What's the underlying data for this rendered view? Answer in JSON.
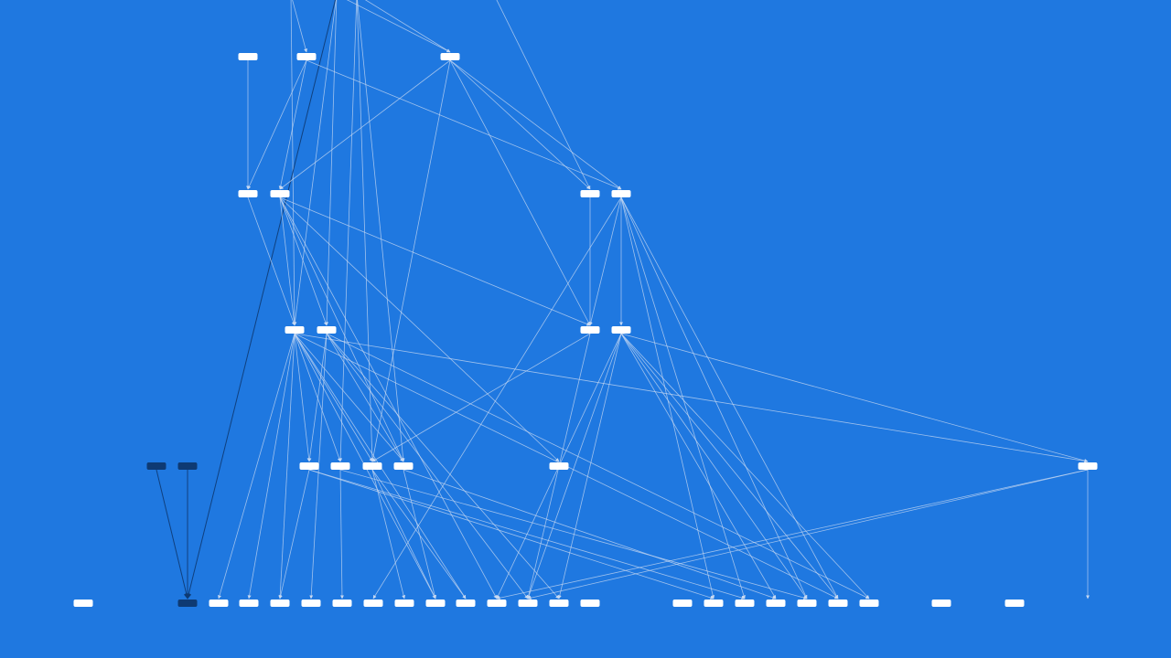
{
  "graph": {
    "title": "",
    "colors": {
      "background": "#1f78e0",
      "node": "#ffffff",
      "node_highlight": "#0e3a73",
      "edge": "#c9daf2",
      "edge_highlight": "#0e3a73"
    },
    "nodes": [
      {
        "id": "a1",
        "layer": 1,
        "slot": 0,
        "highlighted": false
      },
      {
        "id": "a2",
        "layer": 1,
        "slot": 1,
        "highlighted": false
      },
      {
        "id": "a3",
        "layer": 1,
        "slot": 2,
        "highlighted": false
      },
      {
        "id": "b1",
        "layer": 2,
        "slot": 0,
        "highlighted": false
      },
      {
        "id": "b2",
        "layer": 2,
        "slot": 1,
        "highlighted": false
      },
      {
        "id": "b3",
        "layer": 2,
        "slot": 2,
        "highlighted": false
      },
      {
        "id": "b4",
        "layer": 2,
        "slot": 3,
        "highlighted": false
      },
      {
        "id": "c1",
        "layer": 3,
        "slot": 0,
        "highlighted": false
      },
      {
        "id": "c2",
        "layer": 3,
        "slot": 1,
        "highlighted": false
      },
      {
        "id": "c3",
        "layer": 3,
        "slot": 2,
        "highlighted": false
      },
      {
        "id": "c4",
        "layer": 3,
        "slot": 3,
        "highlighted": false
      },
      {
        "id": "d0",
        "layer": 4,
        "slot": 0,
        "highlighted": true
      },
      {
        "id": "d1",
        "layer": 4,
        "slot": 1,
        "highlighted": true
      },
      {
        "id": "d2",
        "layer": 4,
        "slot": 2,
        "highlighted": false
      },
      {
        "id": "d3",
        "layer": 4,
        "slot": 3,
        "highlighted": false
      },
      {
        "id": "d4",
        "layer": 4,
        "slot": 4,
        "highlighted": false
      },
      {
        "id": "d5",
        "layer": 4,
        "slot": 5,
        "highlighted": false
      },
      {
        "id": "d6",
        "layer": 4,
        "slot": 6,
        "highlighted": false
      },
      {
        "id": "d7",
        "layer": 4,
        "slot": 7,
        "highlighted": false
      },
      {
        "id": "e0",
        "layer": 5,
        "slot": 0,
        "highlighted": false
      },
      {
        "id": "e1",
        "layer": 5,
        "slot": 1,
        "highlighted": true
      },
      {
        "id": "e2",
        "layer": 5,
        "slot": 2,
        "highlighted": false
      },
      {
        "id": "e3",
        "layer": 5,
        "slot": 3,
        "highlighted": false
      },
      {
        "id": "e4",
        "layer": 5,
        "slot": 4,
        "highlighted": false
      },
      {
        "id": "e5",
        "layer": 5,
        "slot": 5,
        "highlighted": false
      },
      {
        "id": "e6",
        "layer": 5,
        "slot": 6,
        "highlighted": false
      },
      {
        "id": "e7",
        "layer": 5,
        "slot": 7,
        "highlighted": false
      },
      {
        "id": "e8",
        "layer": 5,
        "slot": 8,
        "highlighted": false
      },
      {
        "id": "e9",
        "layer": 5,
        "slot": 9,
        "highlighted": false
      },
      {
        "id": "e10",
        "layer": 5,
        "slot": 10,
        "highlighted": false
      },
      {
        "id": "e11",
        "layer": 5,
        "slot": 11,
        "highlighted": false
      },
      {
        "id": "e12",
        "layer": 5,
        "slot": 12,
        "highlighted": false
      },
      {
        "id": "e13",
        "layer": 5,
        "slot": 13,
        "highlighted": false
      },
      {
        "id": "e14",
        "layer": 5,
        "slot": 14,
        "highlighted": false
      },
      {
        "id": "e15",
        "layer": 5,
        "slot": 15,
        "highlighted": false
      },
      {
        "id": "e16",
        "layer": 5,
        "slot": 16,
        "highlighted": false
      },
      {
        "id": "e17",
        "layer": 5,
        "slot": 17,
        "highlighted": false
      },
      {
        "id": "e18",
        "layer": 5,
        "slot": 18,
        "highlighted": false
      },
      {
        "id": "e19",
        "layer": 5,
        "slot": 19,
        "highlighted": false
      },
      {
        "id": "e20",
        "layer": 5,
        "slot": 20,
        "highlighted": false
      },
      {
        "id": "e21",
        "layer": 5,
        "slot": 21,
        "highlighted": false
      },
      {
        "id": "e22",
        "layer": 5,
        "slot": 22,
        "highlighted": false
      },
      {
        "id": "e23",
        "layer": 5,
        "slot": 23,
        "highlighted": false
      }
    ],
    "edges": [
      {
        "from": "top1",
        "to": "a2"
      },
      {
        "from": "top2",
        "to": "a3"
      },
      {
        "from": "top3",
        "to": "a3"
      },
      {
        "from": "top2",
        "to": "c1"
      },
      {
        "from": "top2",
        "to": "c2"
      },
      {
        "from": "top3",
        "to": "d3"
      },
      {
        "from": "top3",
        "to": "d4"
      },
      {
        "from": "top3",
        "to": "d5"
      },
      {
        "from": "top1",
        "to": "c1"
      },
      {
        "from": "top4",
        "to": "b3"
      },
      {
        "from": "top2",
        "to": "e1",
        "highlight": true
      },
      {
        "from": "a1",
        "to": "b1"
      },
      {
        "from": "a2",
        "to": "b1"
      },
      {
        "from": "a2",
        "to": "b2"
      },
      {
        "from": "a2",
        "to": "b4"
      },
      {
        "from": "a3",
        "to": "b2"
      },
      {
        "from": "a3",
        "to": "b3"
      },
      {
        "from": "a3",
        "to": "b4"
      },
      {
        "from": "a3",
        "to": "c3"
      },
      {
        "from": "a3",
        "to": "d4"
      },
      {
        "from": "b1",
        "to": "c1"
      },
      {
        "from": "b2",
        "to": "c1"
      },
      {
        "from": "b2",
        "to": "c2"
      },
      {
        "from": "b2",
        "to": "c3"
      },
      {
        "from": "b2",
        "to": "d5"
      },
      {
        "from": "b2",
        "to": "d6"
      },
      {
        "from": "b2",
        "to": "e11"
      },
      {
        "from": "b3",
        "to": "c3"
      },
      {
        "from": "b4",
        "to": "c3"
      },
      {
        "from": "b4",
        "to": "c4"
      },
      {
        "from": "b4",
        "to": "e7"
      },
      {
        "from": "b4",
        "to": "e16"
      },
      {
        "from": "b4",
        "to": "e17"
      },
      {
        "from": "b4",
        "to": "e19"
      },
      {
        "from": "b4",
        "to": "e20"
      },
      {
        "from": "c1",
        "to": "d2"
      },
      {
        "from": "c1",
        "to": "d3"
      },
      {
        "from": "c1",
        "to": "d4"
      },
      {
        "from": "c1",
        "to": "d5"
      },
      {
        "from": "c1",
        "to": "d7"
      },
      {
        "from": "c1",
        "to": "e2"
      },
      {
        "from": "c1",
        "to": "e3"
      },
      {
        "from": "c1",
        "to": "e4"
      },
      {
        "from": "c1",
        "to": "e9"
      },
      {
        "from": "c1",
        "to": "e10"
      },
      {
        "from": "c1",
        "to": "e20"
      },
      {
        "from": "c2",
        "to": "d2"
      },
      {
        "from": "c2",
        "to": "d5"
      },
      {
        "from": "c2",
        "to": "e5"
      },
      {
        "from": "c2",
        "to": "e12"
      },
      {
        "from": "c2",
        "to": "e13"
      },
      {
        "from": "c2",
        "to": "e21"
      },
      {
        "from": "c3",
        "to": "d4"
      },
      {
        "from": "c3",
        "to": "e12"
      },
      {
        "from": "c4",
        "to": "d7"
      },
      {
        "from": "c4",
        "to": "e11"
      },
      {
        "from": "c4",
        "to": "e12"
      },
      {
        "from": "c4",
        "to": "e13"
      },
      {
        "from": "c4",
        "to": "e18"
      },
      {
        "from": "c4",
        "to": "e19"
      },
      {
        "from": "c4",
        "to": "e20"
      },
      {
        "from": "c4",
        "to": "e21"
      },
      {
        "from": "d0",
        "to": "e1",
        "highlight": true
      },
      {
        "from": "d1",
        "to": "e1",
        "highlight": true
      },
      {
        "from": "d2",
        "to": "e4"
      },
      {
        "from": "d2",
        "to": "e16"
      },
      {
        "from": "d2",
        "to": "e17"
      },
      {
        "from": "d3",
        "to": "e6"
      },
      {
        "from": "d3",
        "to": "e19"
      },
      {
        "from": "d4",
        "to": "e8"
      },
      {
        "from": "d4",
        "to": "e9"
      },
      {
        "from": "d4",
        "to": "e10"
      },
      {
        "from": "d5",
        "to": "e9"
      },
      {
        "from": "d5",
        "to": "e18"
      },
      {
        "from": "d7",
        "to": "e11"
      },
      {
        "from": "d7",
        "to": "e12"
      },
      {
        "from": "e23",
        "to": "e23"
      }
    ]
  }
}
